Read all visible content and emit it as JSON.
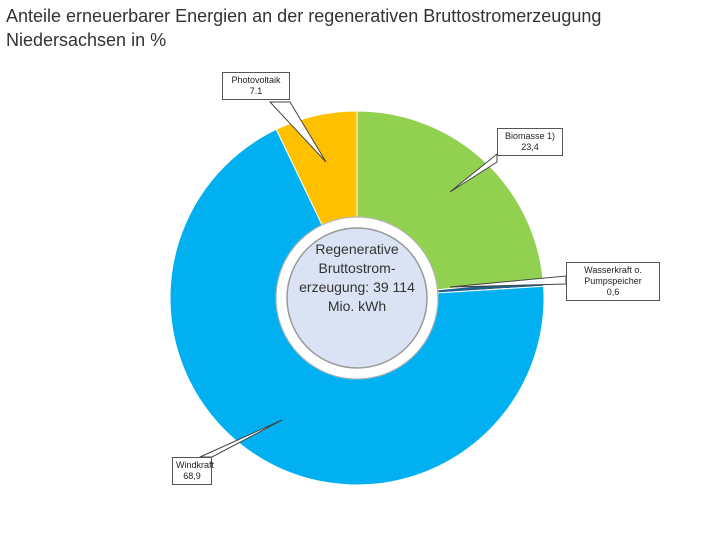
{
  "chart_data": {
    "type": "donut",
    "title": "Anteile erneuerbarer Energien an der regenerativen Bruttostromerzeugung Niedersachsen in %",
    "center_label": "Regenerative Bruttostrom-erzeugung: 39 114 Mio. kWh",
    "categories": [
      "Biomasse 1)",
      "Wasserkraft o. Pumpspeicher",
      "Windkraft",
      "Photovoltaik"
    ],
    "values": [
      23.4,
      0.6,
      68.9,
      7.1
    ],
    "value_labels": [
      "23,4",
      "0,6",
      "68,9",
      "7.1"
    ],
    "colors": [
      "#92d050",
      "#1f5f8b",
      "#00b0f0",
      "#ffc000"
    ]
  }
}
